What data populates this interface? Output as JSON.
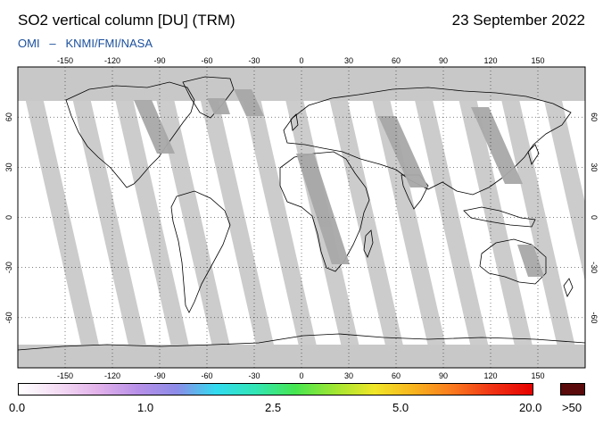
{
  "header": {
    "title": "SO2 vertical column [DU] (TRM)",
    "date": "23 September 2022",
    "source_omi": "OMI",
    "source_sep": "–",
    "source_org": "KNMI/FMI/NASA"
  },
  "map": {
    "projection": "equirectangular",
    "lon_ticks": [
      "-150",
      "-120",
      "-90",
      "-60",
      "-30",
      "0",
      "30",
      "60",
      "90",
      "120",
      "150"
    ],
    "lat_ticks": [
      "60",
      "30",
      "0",
      "-30",
      "-60"
    ],
    "colors": {
      "ocean": "#ffffff",
      "no_data_gap": "#c8c8c8",
      "land_gap": "#a8a8a8",
      "coastline": "#000000",
      "polar_no_data": "#c8c8c8"
    }
  },
  "colorbar": {
    "labels": [
      "0.0",
      "1.0",
      "2.5",
      "5.0",
      "20.0",
      ">50"
    ],
    "overflow_color": "#5a0a0a",
    "stops": [
      "#ffffff",
      "#f4dcf4",
      "#e2b2ea",
      "#b890e8",
      "#8c8ce8",
      "#32dcf0",
      "#32e6b4",
      "#46e650",
      "#a0e632",
      "#f0e628",
      "#f8b41e",
      "#fa781e",
      "#f03214",
      "#e60000"
    ]
  }
}
